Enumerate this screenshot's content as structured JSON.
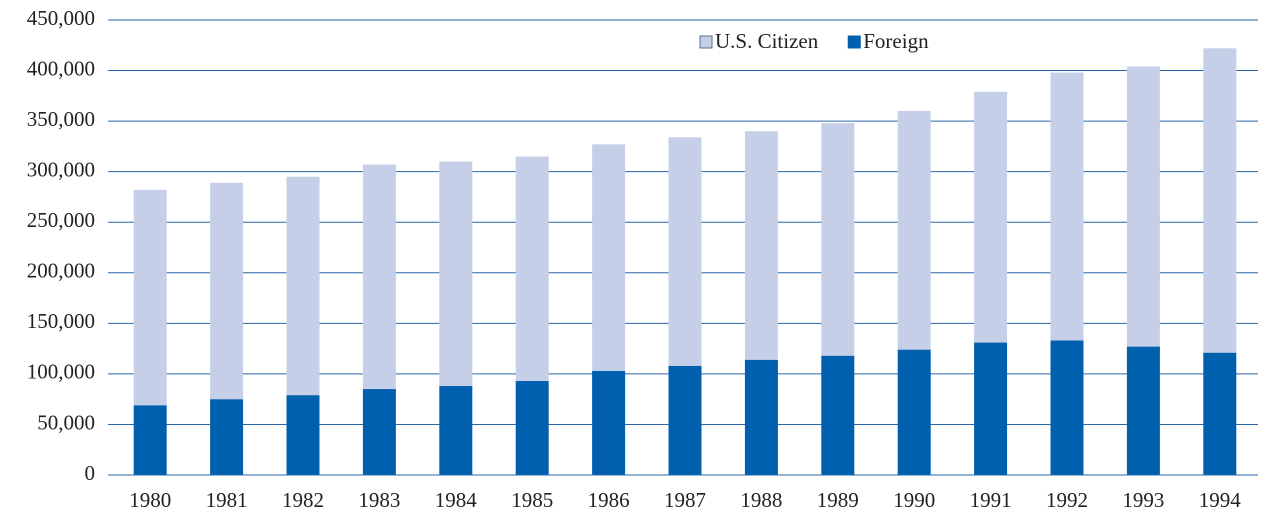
{
  "chart_data": {
    "type": "stacked_bar",
    "categories": [
      "1980",
      "1981",
      "1982",
      "1983",
      "1984",
      "1985",
      "1986",
      "1987",
      "1988",
      "1989",
      "1990",
      "1991",
      "1992",
      "1993",
      "1994"
    ],
    "series": [
      {
        "name": "U.S. Citizen",
        "color": "#c5cfe8",
        "values": [
          213000,
          214000,
          216000,
          222000,
          222000,
          222000,
          224000,
          226000,
          226000,
          230000,
          236000,
          248000,
          265000,
          277000,
          301000
        ]
      },
      {
        "name": "Foreign",
        "color": "#0060ad",
        "values": [
          69000,
          75000,
          79000,
          85000,
          88000,
          93000,
          103000,
          108000,
          114000,
          118000,
          124000,
          131000,
          133000,
          127000,
          121000
        ]
      }
    ],
    "ylim": [
      0,
      450000
    ],
    "yticks": [
      0,
      {
        "value": 50000,
        "label": "50,000"
      },
      {
        "value": 100000,
        "label": "100,000"
      },
      {
        "value": 150000,
        "label": "150,000"
      },
      {
        "value": 200000,
        "label": "200,000"
      },
      {
        "value": 250000,
        "label": "250,000"
      },
      {
        "value": 300000,
        "label": "300,000"
      },
      {
        "value": 350000,
        "label": "350,000"
      },
      {
        "value": 400000,
        "label": "400,000"
      },
      {
        "value": 450000,
        "label": "450,000"
      }
    ],
    "grid": true,
    "legend": "top"
  }
}
